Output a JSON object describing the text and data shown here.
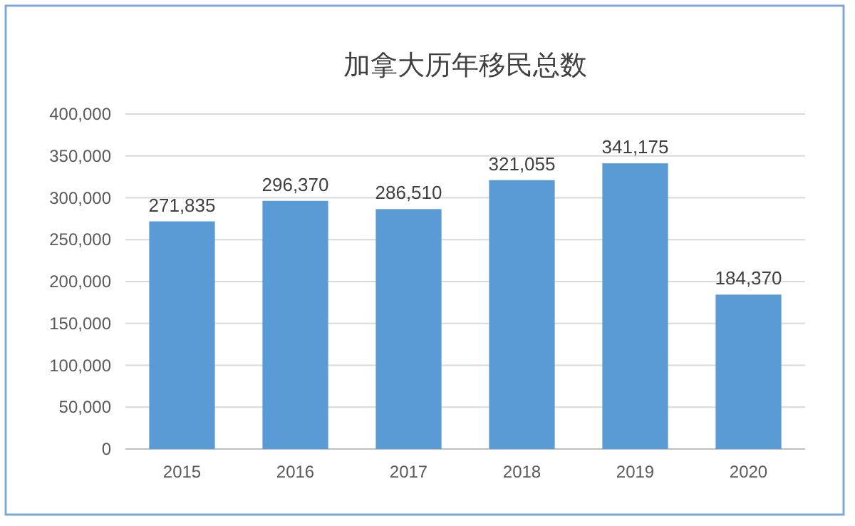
{
  "chart_data": {
    "type": "bar",
    "title": "加拿大历年移民总数",
    "categories": [
      "2015",
      "2016",
      "2017",
      "2018",
      "2019",
      "2020"
    ],
    "values": [
      271835,
      296370,
      286510,
      321055,
      341175,
      184370
    ],
    "value_labels": [
      "271,835",
      "296,370",
      "286,510",
      "321,055",
      "341,175",
      "184,370"
    ],
    "color": "#5b9bd5",
    "ylim": [
      0,
      400000
    ],
    "yticks": [
      {
        "value": 0,
        "label": "0"
      },
      {
        "value": 50000,
        "label": "50,000"
      },
      {
        "value": 100000,
        "label": "100,000"
      },
      {
        "value": 150000,
        "label": "150,000"
      },
      {
        "value": 200000,
        "label": "200,000"
      },
      {
        "value": 250000,
        "label": "250,000"
      },
      {
        "value": 300000,
        "label": "300,000"
      },
      {
        "value": 350000,
        "label": "350,000"
      },
      {
        "value": 400000,
        "label": "400,000"
      }
    ],
    "grid": "y"
  }
}
